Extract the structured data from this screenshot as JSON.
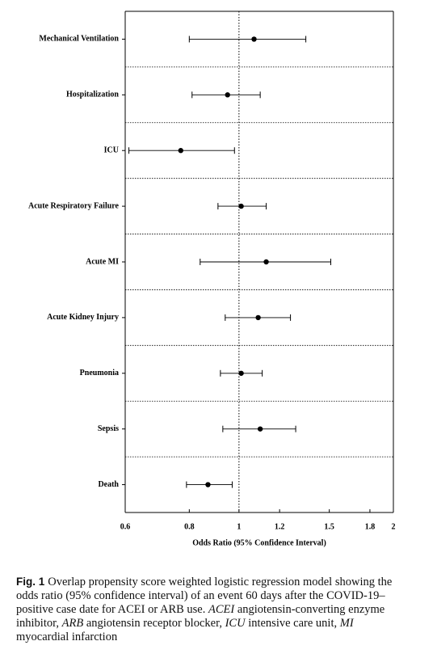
{
  "chart_data": {
    "type": "forest",
    "x_label": "Odds Ratio (95% Confidence Interval)",
    "categories": [
      "Mechanical Ventilation",
      "Hospitalization",
      "ICU",
      "Acute Respiratory Failure",
      "Acute MI",
      "Acute Kidney Injury",
      "Pneumonia",
      "Sepsis",
      "Death"
    ],
    "values": [
      1.07,
      0.95,
      0.77,
      1.01,
      1.13,
      1.09,
      1.01,
      1.1,
      0.87
    ],
    "ci_low": [
      0.8,
      0.81,
      0.61,
      0.91,
      0.84,
      0.94,
      0.92,
      0.93,
      0.79
    ],
    "ci_high": [
      1.35,
      1.1,
      0.98,
      1.13,
      1.51,
      1.26,
      1.11,
      1.29,
      0.97
    ],
    "color": "#000000",
    "xlim": [
      0.6,
      2
    ],
    "xticks": [
      0.6,
      0.8,
      1,
      1.2,
      1.5,
      1.8,
      2
    ],
    "log_x": true,
    "reference_line": 1
  },
  "caption": {
    "label": "Fig. 1",
    "parts": [
      "Overlap propensity score weighted logistic regression model showing the odds ratio (95% confidence interval) of an event 60 days after the COVID-19–positive case date for ACEI or ARB use. ",
      "ACEI",
      " angiotensin-converting enzyme inhibitor, ",
      "ARB",
      " angiotensin receptor blocker, ",
      "ICU",
      " intensive care unit, ",
      "MI",
      " myocardial infarction"
    ]
  }
}
